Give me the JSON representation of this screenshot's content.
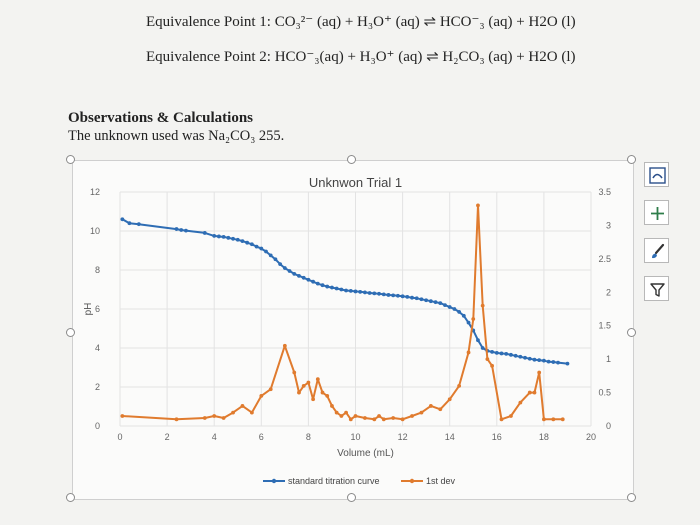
{
  "equations": {
    "eq1": "Equivalence Point 1: CO₃²⁻ (aq) + H₃O⁺ (aq) ⇌ HCO⁻₃ (aq) + H2O (l)",
    "eq2": "Equivalence Point 2: HCO⁻₃(aq) + H₃O⁺ (aq) ⇌ H₂CO₃ (aq) + H2O (l)"
  },
  "observations": {
    "title": "Observations & Calculations",
    "text": "The unknown used was Na₂CO₃ 255."
  },
  "chart_data": {
    "type": "line",
    "title": "Unknwon Trial 1",
    "xlabel": "Volume (mL)",
    "ylabel": "pH",
    "xlim": [
      0,
      20
    ],
    "ylim": [
      0,
      12
    ],
    "y2lim": [
      0,
      3.5
    ],
    "x_ticks": [
      0,
      2,
      4,
      6,
      8,
      10,
      12,
      14,
      16,
      18,
      20
    ],
    "y_ticks": [
      0,
      2,
      4,
      6,
      8,
      10,
      12
    ],
    "y2_ticks": [
      0,
      0.5,
      1,
      1.5,
      2,
      2.5,
      3,
      3.5
    ],
    "grid": true,
    "legend_position": "bottom",
    "series": [
      {
        "name": "standard titration curve",
        "axis": "left",
        "color": "#2e6db4",
        "x": [
          0.1,
          0.4,
          0.8,
          2.4,
          2.6,
          2.8,
          3.6,
          4.0,
          4.2,
          4.4,
          4.6,
          4.8,
          5.0,
          5.2,
          5.4,
          5.6,
          5.8,
          6.0,
          6.2,
          6.4,
          6.6,
          6.8,
          7.0,
          7.2,
          7.4,
          7.6,
          7.8,
          8.0,
          8.2,
          8.4,
          8.6,
          8.8,
          9.0,
          9.2,
          9.4,
          9.6,
          9.8,
          10.0,
          10.2,
          10.4,
          10.6,
          10.8,
          11.0,
          11.2,
          11.4,
          11.6,
          11.8,
          12.0,
          12.2,
          12.4,
          12.6,
          12.8,
          13.0,
          13.2,
          13.4,
          13.6,
          13.8,
          14.0,
          14.2,
          14.4,
          14.6,
          14.8,
          15.0,
          15.2,
          15.4,
          15.6,
          15.8,
          16.0,
          16.2,
          16.4,
          16.6,
          16.8,
          17.0,
          17.2,
          17.4,
          17.6,
          17.8,
          18.0,
          18.2,
          18.4,
          18.6,
          19.0
        ],
        "y": [
          10.6,
          10.4,
          10.35,
          10.1,
          10.05,
          10.02,
          9.9,
          9.75,
          9.72,
          9.7,
          9.65,
          9.6,
          9.55,
          9.48,
          9.4,
          9.32,
          9.2,
          9.1,
          8.95,
          8.75,
          8.55,
          8.3,
          8.1,
          7.95,
          7.8,
          7.7,
          7.6,
          7.5,
          7.4,
          7.3,
          7.22,
          7.15,
          7.1,
          7.05,
          7.0,
          6.95,
          6.93,
          6.9,
          6.88,
          6.85,
          6.82,
          6.8,
          6.78,
          6.75,
          6.72,
          6.7,
          6.68,
          6.65,
          6.62,
          6.58,
          6.55,
          6.5,
          6.45,
          6.4,
          6.35,
          6.3,
          6.2,
          6.1,
          6.0,
          5.85,
          5.65,
          5.3,
          4.9,
          4.4,
          4.0,
          3.85,
          3.8,
          3.75,
          3.72,
          3.7,
          3.65,
          3.6,
          3.55,
          3.5,
          3.45,
          3.4,
          3.38,
          3.35,
          3.3,
          3.28,
          3.25,
          3.2
        ]
      },
      {
        "name": "1st dev",
        "axis": "right",
        "color": "#e07b2e",
        "x": [
          0.1,
          2.4,
          3.6,
          4.0,
          4.4,
          4.8,
          5.2,
          5.6,
          6.0,
          6.4,
          7.0,
          7.4,
          7.6,
          7.8,
          8.0,
          8.2,
          8.4,
          8.6,
          8.8,
          9.0,
          9.2,
          9.4,
          9.6,
          9.8,
          10.0,
          10.4,
          10.8,
          11.0,
          11.2,
          11.6,
          12.0,
          12.4,
          12.8,
          13.2,
          13.6,
          14.0,
          14.4,
          14.8,
          15.0,
          15.2,
          15.4,
          15.6,
          15.8,
          16.2,
          16.6,
          17.0,
          17.4,
          17.6,
          17.8,
          18.0,
          18.4,
          18.8
        ],
        "y": [
          0.15,
          0.1,
          0.12,
          0.15,
          0.12,
          0.2,
          0.3,
          0.2,
          0.45,
          0.55,
          1.2,
          0.8,
          0.5,
          0.6,
          0.65,
          0.4,
          0.7,
          0.5,
          0.45,
          0.3,
          0.2,
          0.15,
          0.2,
          0.1,
          0.15,
          0.12,
          0.1,
          0.15,
          0.1,
          0.12,
          0.1,
          0.15,
          0.2,
          0.3,
          0.25,
          0.4,
          0.6,
          1.1,
          1.6,
          3.3,
          1.8,
          1.0,
          0.9,
          0.1,
          0.15,
          0.35,
          0.5,
          0.5,
          0.8,
          0.1,
          0.1,
          0.1
        ]
      }
    ]
  },
  "toolbar": {
    "layout_icon": "chart-layout-icon",
    "add_icon": "plus-icon",
    "style_icon": "paintbrush-icon",
    "filter_icon": "filter-icon"
  }
}
